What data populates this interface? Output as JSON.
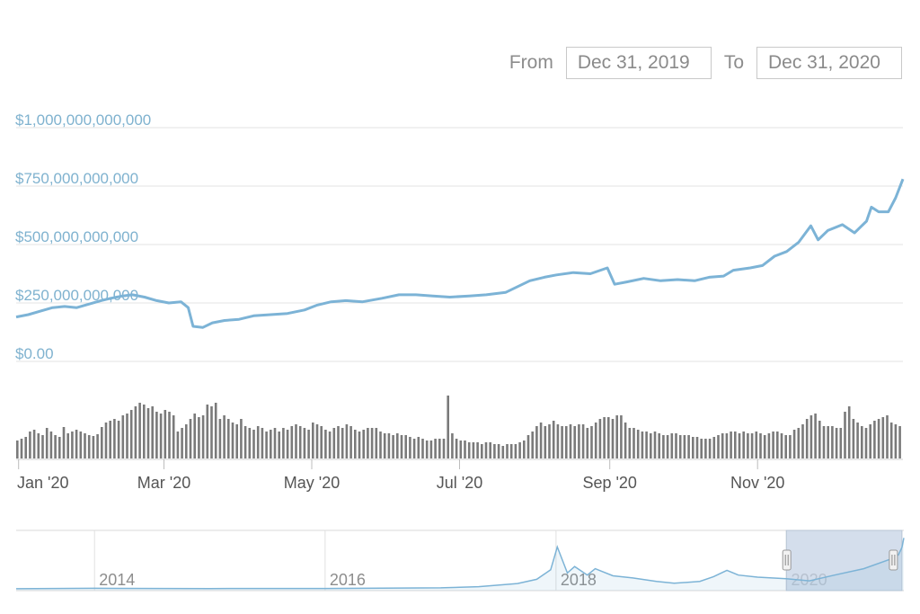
{
  "range": {
    "from_label": "From",
    "from_value": "Dec 31, 2019",
    "to_label": "To",
    "to_value": "Dec 31, 2020"
  },
  "colors": {
    "line": "#7cb3d6",
    "ylabel": "#7fb2cf",
    "grid": "#e3e3e3",
    "volume": "#7a7a7a",
    "xlabel": "#555555",
    "navigator_mask": "#c5d3e6"
  },
  "chart_data": [
    {
      "type": "line",
      "title": "",
      "x_domain": [
        "2019-12-31",
        "2020-12-31"
      ],
      "ylim": [
        0,
        1000000000000
      ],
      "y_ticks": [
        {
          "value": 0,
          "label": "$0.00"
        },
        {
          "value": 250000000000,
          "label": "$250,000,000,000"
        },
        {
          "value": 500000000000,
          "label": "$500,000,000,000"
        },
        {
          "value": 750000000000,
          "label": "$750,000,000,000"
        },
        {
          "value": 1000000000000,
          "label": "$1,000,000,000,000"
        }
      ],
      "x_ticks": [
        {
          "date": "2020-01-01",
          "label": "Jan '20"
        },
        {
          "date": "2020-03-01",
          "label": "Mar '20"
        },
        {
          "date": "2020-05-01",
          "label": "May '20"
        },
        {
          "date": "2020-07-01",
          "label": "Jul '20"
        },
        {
          "date": "2020-09-01",
          "label": "Sep '20"
        },
        {
          "date": "2020-11-01",
          "label": "Nov '20"
        }
      ],
      "grid": true,
      "series": [
        {
          "points": [
            [
              "2019-12-31",
              190
            ],
            [
              "2020-01-05",
              200
            ],
            [
              "2020-01-10",
              215
            ],
            [
              "2020-01-15",
              230
            ],
            [
              "2020-01-20",
              235
            ],
            [
              "2020-01-25",
              230
            ],
            [
              "2020-01-30",
              245
            ],
            [
              "2020-02-04",
              260
            ],
            [
              "2020-02-08",
              270
            ],
            [
              "2020-02-13",
              280
            ],
            [
              "2020-02-17",
              285
            ],
            [
              "2020-02-22",
              275
            ],
            [
              "2020-02-27",
              260
            ],
            [
              "2020-03-03",
              250
            ],
            [
              "2020-03-08",
              255
            ],
            [
              "2020-03-11",
              230
            ],
            [
              "2020-03-13",
              150
            ],
            [
              "2020-03-17",
              145
            ],
            [
              "2020-03-21",
              165
            ],
            [
              "2020-03-26",
              175
            ],
            [
              "2020-04-01",
              180
            ],
            [
              "2020-04-07",
              195
            ],
            [
              "2020-04-14",
              200
            ],
            [
              "2020-04-21",
              205
            ],
            [
              "2020-04-28",
              220
            ],
            [
              "2020-05-03",
              240
            ],
            [
              "2020-05-09",
              255
            ],
            [
              "2020-05-15",
              260
            ],
            [
              "2020-05-22",
              255
            ],
            [
              "2020-05-30",
              270
            ],
            [
              "2020-06-06",
              285
            ],
            [
              "2020-06-13",
              285
            ],
            [
              "2020-06-20",
              280
            ],
            [
              "2020-06-27",
              275
            ],
            [
              "2020-07-05",
              280
            ],
            [
              "2020-07-12",
              285
            ],
            [
              "2020-07-20",
              295
            ],
            [
              "2020-07-25",
              320
            ],
            [
              "2020-07-30",
              345
            ],
            [
              "2020-08-05",
              360
            ],
            [
              "2020-08-10",
              370
            ],
            [
              "2020-08-17",
              380
            ],
            [
              "2020-08-24",
              375
            ],
            [
              "2020-08-31",
              400
            ],
            [
              "2020-09-03",
              330
            ],
            [
              "2020-09-08",
              340
            ],
            [
              "2020-09-15",
              355
            ],
            [
              "2020-09-22",
              345
            ],
            [
              "2020-09-29",
              350
            ],
            [
              "2020-10-06",
              345
            ],
            [
              "2020-10-12",
              360
            ],
            [
              "2020-10-18",
              365
            ],
            [
              "2020-10-22",
              390
            ],
            [
              "2020-10-29",
              400
            ],
            [
              "2020-11-03",
              410
            ],
            [
              "2020-11-08",
              450
            ],
            [
              "2020-11-13",
              470
            ],
            [
              "2020-11-18",
              510
            ],
            [
              "2020-11-23",
              580
            ],
            [
              "2020-11-26",
              520
            ],
            [
              "2020-11-30",
              560
            ],
            [
              "2020-12-06",
              585
            ],
            [
              "2020-12-11",
              550
            ],
            [
              "2020-12-16",
              600
            ],
            [
              "2020-12-18",
              660
            ],
            [
              "2020-12-21",
              640
            ],
            [
              "2020-12-25",
              640
            ],
            [
              "2020-12-28",
              700
            ],
            [
              "2020-12-31",
              780
            ]
          ]
        }
      ]
    },
    {
      "type": "bar",
      "title": "",
      "x_domain": [
        "2019-12-31",
        "2020-12-31"
      ],
      "values": [
        20,
        22,
        24,
        30,
        32,
        28,
        26,
        34,
        30,
        26,
        24,
        35,
        28,
        30,
        32,
        30,
        28,
        26,
        25,
        27,
        35,
        40,
        42,
        44,
        42,
        48,
        50,
        54,
        58,
        62,
        60,
        56,
        58,
        52,
        50,
        54,
        52,
        48,
        30,
        34,
        38,
        44,
        50,
        46,
        48,
        60,
        58,
        62,
        44,
        48,
        44,
        40,
        38,
        44,
        36,
        34,
        32,
        36,
        34,
        30,
        32,
        34,
        30,
        34,
        32,
        36,
        38,
        36,
        34,
        32,
        40,
        38,
        36,
        32,
        30,
        34,
        36,
        34,
        38,
        36,
        32,
        30,
        32,
        34,
        34,
        34,
        30,
        28,
        28,
        26,
        28,
        26,
        26,
        24,
        22,
        24,
        22,
        20,
        20,
        22,
        22,
        22,
        70,
        28,
        22,
        20,
        20,
        18,
        18,
        18,
        16,
        18,
        18,
        16,
        16,
        14,
        16,
        16,
        16,
        18,
        20,
        26,
        30,
        36,
        40,
        36,
        38,
        42,
        38,
        36,
        36,
        38,
        36,
        38,
        38,
        34,
        36,
        40,
        44,
        46,
        46,
        44,
        48,
        48,
        40,
        34,
        34,
        32,
        30,
        30,
        28,
        30,
        28,
        26,
        26,
        28,
        28,
        26,
        26,
        26,
        24,
        24,
        22,
        22,
        22,
        24,
        26,
        28,
        28,
        30,
        30,
        28,
        30,
        28,
        28,
        30,
        28,
        26,
        28,
        30,
        30,
        28,
        26,
        26,
        32,
        34,
        38,
        44,
        48,
        50,
        42,
        36,
        36,
        36,
        34,
        34,
        52,
        58,
        44,
        40,
        36,
        34,
        38,
        42,
        44,
        46,
        48,
        40,
        38,
        36
      ]
    },
    {
      "type": "area",
      "title": "",
      "x_ticks": [
        {
          "date": "2014-01-01",
          "label": "2014"
        },
        {
          "date": "2016-01-01",
          "label": "2016"
        },
        {
          "date": "2018-01-01",
          "label": "2018"
        },
        {
          "date": "2020-01-01",
          "label": "2020"
        }
      ],
      "selected_range": [
        "2019-12-31",
        "2020-12-31"
      ],
      "x_domain": [
        "2013-04-28",
        "2021-01-06"
      ],
      "ylim": [
        0,
        1000000000000
      ],
      "series": [
        {
          "points": [
            [
              "2013-04-28",
              1
            ],
            [
              "2014-01-01",
              10
            ],
            [
              "2015-01-01",
              5
            ],
            [
              "2016-01-01",
              7
            ],
            [
              "2017-01-01",
              18
            ],
            [
              "2017-05-01",
              40
            ],
            [
              "2017-09-01",
              100
            ],
            [
              "2017-11-01",
              180
            ],
            [
              "2017-12-15",
              360
            ],
            [
              "2018-01-05",
              790
            ],
            [
              "2018-02-06",
              300
            ],
            [
              "2018-03-01",
              420
            ],
            [
              "2018-04-10",
              260
            ],
            [
              "2018-05-05",
              380
            ],
            [
              "2018-06-30",
              245
            ],
            [
              "2018-09-01",
              205
            ],
            [
              "2018-11-15",
              140
            ],
            [
              "2019-01-10",
              105
            ],
            [
              "2019-04-01",
              140
            ],
            [
              "2019-05-15",
              230
            ],
            [
              "2019-06-26",
              350
            ],
            [
              "2019-08-01",
              260
            ],
            [
              "2019-10-01",
              220
            ],
            [
              "2019-12-31",
              190
            ],
            [
              "2020-03-13",
              150
            ],
            [
              "2020-06-01",
              260
            ],
            [
              "2020-09-01",
              380
            ],
            [
              "2020-11-25",
              560
            ],
            [
              "2020-12-20",
              640
            ],
            [
              "2020-12-31",
              780
            ],
            [
              "2021-01-06",
              960
            ]
          ]
        }
      ]
    }
  ]
}
